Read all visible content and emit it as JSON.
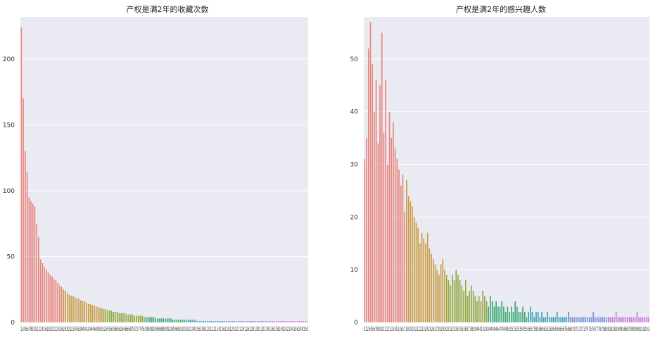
{
  "charts": [
    {
      "type": "bar",
      "title": "产权是满2年的收藏次数",
      "xlabel": "",
      "ylabel": "",
      "ylim": [
        0,
        232
      ],
      "yticks": [
        0,
        50,
        100,
        150,
        200
      ],
      "grid": true,
      "legend": "none",
      "palette": [
        "#e8837a",
        "#c89b3f",
        "#8fa83a",
        "#3aa874",
        "#3aa2b6",
        "#7a8fe0",
        "#d07ad8"
      ],
      "values": [
        224,
        170,
        130,
        114,
        95,
        92,
        90,
        88,
        75,
        65,
        48,
        45,
        42,
        40,
        38,
        36,
        35,
        33,
        32,
        30,
        28,
        27,
        25,
        24,
        22,
        21,
        20,
        20,
        19,
        18,
        18,
        17,
        16,
        16,
        15,
        14,
        14,
        13,
        13,
        12,
        12,
        11,
        11,
        10,
        10,
        9,
        9,
        9,
        8,
        8,
        8,
        7,
        7,
        7,
        7,
        6,
        6,
        6,
        6,
        5,
        5,
        5,
        5,
        5,
        4,
        4,
        4,
        4,
        4,
        4,
        3,
        3,
        3,
        3,
        3,
        3,
        3,
        3,
        3,
        2,
        2,
        2,
        2,
        2,
        2,
        2,
        2,
        2,
        2,
        2,
        2,
        2,
        1,
        1,
        1,
        1,
        1,
        1,
        1,
        1,
        1,
        1,
        1,
        1,
        1,
        1,
        1,
        1,
        1,
        1,
        1,
        1,
        1,
        1,
        1,
        1,
        1,
        1,
        1,
        1,
        1,
        1,
        1,
        1,
        1,
        1,
        1,
        1,
        1,
        1,
        1,
        1,
        1,
        1,
        1,
        1,
        1,
        1,
        1,
        1,
        1,
        1,
        1,
        1,
        1,
        1,
        1,
        1,
        1,
        1
      ],
      "xtick_text": "13456789101214161820222426283032343638404244464850525456586062646668707274767880828486889092949698100102104106108110112114116118120122124126128130132134136138140142144146148150"
    },
    {
      "type": "bar",
      "title": "产权是满2年的感兴趣人数",
      "xlabel": "",
      "ylabel": "",
      "ylim": [
        0,
        58
      ],
      "yticks": [
        0,
        10,
        20,
        30,
        40,
        50
      ],
      "grid": true,
      "legend": "none",
      "palette": [
        "#e8837a",
        "#c89b3f",
        "#8fa83a",
        "#3aa874",
        "#3aa2b6",
        "#7a8fe0",
        "#d07ad8"
      ],
      "values": [
        31,
        35,
        52,
        57,
        49,
        40,
        46,
        34,
        45,
        55,
        36,
        46,
        30,
        40,
        35,
        38,
        33,
        31,
        29,
        26,
        28,
        21,
        27,
        24,
        23,
        22,
        20,
        19,
        18,
        15,
        17,
        16,
        15,
        17,
        14,
        13,
        12,
        11,
        10,
        9,
        11,
        12,
        10,
        9,
        8,
        7,
        9,
        8,
        10,
        9,
        8,
        7,
        6,
        8,
        5,
        6,
        7,
        6,
        5,
        4,
        5,
        4,
        6,
        5,
        4,
        3,
        5,
        4,
        3,
        4,
        3,
        3,
        4,
        3,
        2,
        3,
        2,
        3,
        2,
        4,
        3,
        2,
        2,
        3,
        2,
        1,
        2,
        3,
        2,
        1,
        2,
        2,
        1,
        2,
        1,
        1,
        2,
        1,
        1,
        1,
        1,
        2,
        1,
        1,
        1,
        1,
        1,
        2,
        1,
        1,
        1,
        1,
        1,
        1,
        1,
        1,
        1,
        1,
        1,
        1,
        2,
        1,
        1,
        1,
        1,
        1,
        1,
        1,
        1,
        1,
        1,
        1,
        2,
        1,
        1,
        1,
        1,
        1,
        1,
        1,
        1,
        1,
        1,
        2,
        1,
        1,
        1,
        1,
        1,
        1
      ],
      "xtick_text": "0123456789101112131415161718192021222324252627282930313233343536373839404142434445464748495051525354555657585960616263646566676869707172737475767778798081828384858687888990919293"
    }
  ]
}
